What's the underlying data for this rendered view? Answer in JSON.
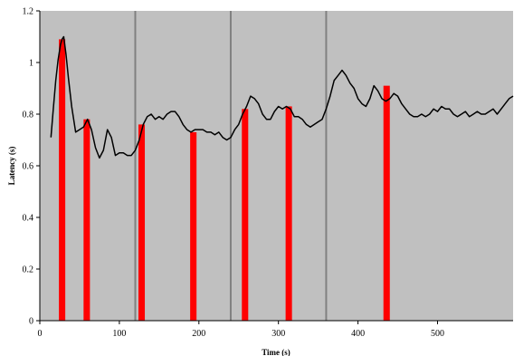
{
  "chart_data": {
    "type": "line",
    "title": "",
    "xlabel": "Time (s)",
    "ylabel": "Latency (s)",
    "xlim": [
      0,
      595
    ],
    "ylim": [
      0,
      1.2
    ],
    "x_ticks": [
      0,
      100,
      200,
      300,
      400,
      500
    ],
    "x_tick_labels": [
      "0",
      "100",
      "200",
      "300",
      "400",
      "500"
    ],
    "y_ticks": [
      0,
      0.2,
      0.4,
      0.6,
      0.8,
      1.0,
      1.2
    ],
    "y_tick_labels": [
      "0",
      "0.2",
      "0.4",
      "0.6",
      "0.8",
      "1",
      "1.2"
    ],
    "grid": false,
    "plot_background": "#c0c0c0",
    "phase_boundaries_x": [
      120,
      240,
      360
    ],
    "phase_boundary_color": "#808080",
    "event_bars": {
      "color": "#ff0000",
      "width_s": 8,
      "x": [
        28,
        59,
        128,
        193,
        258,
        313,
        436
      ],
      "values": [
        1.09,
        0.78,
        0.76,
        0.73,
        0.82,
        0.83,
        0.91
      ]
    },
    "series": [
      {
        "color": "#000000",
        "x": [
          14,
          17,
          20,
          23,
          26,
          28,
          30,
          33,
          36,
          40,
          45,
          50,
          55,
          60,
          65,
          70,
          75,
          80,
          85,
          90,
          95,
          100,
          105,
          110,
          115,
          120,
          125,
          130,
          135,
          140,
          145,
          150,
          155,
          160,
          165,
          170,
          175,
          180,
          185,
          190,
          195,
          200,
          205,
          210,
          215,
          220,
          225,
          230,
          235,
          240,
          245,
          250,
          255,
          260,
          265,
          270,
          275,
          280,
          285,
          290,
          295,
          300,
          305,
          310,
          315,
          320,
          325,
          330,
          335,
          340,
          345,
          350,
          355,
          360,
          365,
          370,
          375,
          380,
          385,
          390,
          395,
          400,
          405,
          410,
          415,
          420,
          425,
          430,
          435,
          440,
          445,
          450,
          455,
          460,
          465,
          470,
          475,
          480,
          485,
          490,
          495,
          500,
          505,
          510,
          515,
          520,
          525,
          530,
          535,
          540,
          545,
          550,
          555,
          560,
          565,
          570,
          575,
          580,
          585,
          590,
          595
        ],
        "y": [
          0.71,
          0.82,
          0.93,
          1.01,
          1.07,
          1.09,
          1.1,
          1.03,
          0.94,
          0.83,
          0.73,
          0.74,
          0.75,
          0.78,
          0.74,
          0.67,
          0.63,
          0.66,
          0.74,
          0.71,
          0.64,
          0.65,
          0.65,
          0.64,
          0.64,
          0.66,
          0.7,
          0.76,
          0.79,
          0.8,
          0.78,
          0.79,
          0.78,
          0.8,
          0.81,
          0.81,
          0.79,
          0.76,
          0.74,
          0.73,
          0.74,
          0.74,
          0.74,
          0.73,
          0.73,
          0.72,
          0.73,
          0.71,
          0.7,
          0.71,
          0.74,
          0.76,
          0.8,
          0.83,
          0.87,
          0.86,
          0.84,
          0.8,
          0.78,
          0.78,
          0.81,
          0.83,
          0.82,
          0.83,
          0.82,
          0.79,
          0.79,
          0.78,
          0.76,
          0.75,
          0.76,
          0.77,
          0.78,
          0.82,
          0.87,
          0.93,
          0.95,
          0.97,
          0.95,
          0.92,
          0.9,
          0.86,
          0.84,
          0.83,
          0.86,
          0.91,
          0.89,
          0.86,
          0.85,
          0.86,
          0.88,
          0.87,
          0.84,
          0.82,
          0.8,
          0.79,
          0.79,
          0.8,
          0.79,
          0.8,
          0.82,
          0.81,
          0.83,
          0.82,
          0.82,
          0.8,
          0.79,
          0.8,
          0.81,
          0.79,
          0.8,
          0.81,
          0.8,
          0.8,
          0.81,
          0.82,
          0.8,
          0.82,
          0.84,
          0.86,
          0.87
        ]
      }
    ]
  }
}
